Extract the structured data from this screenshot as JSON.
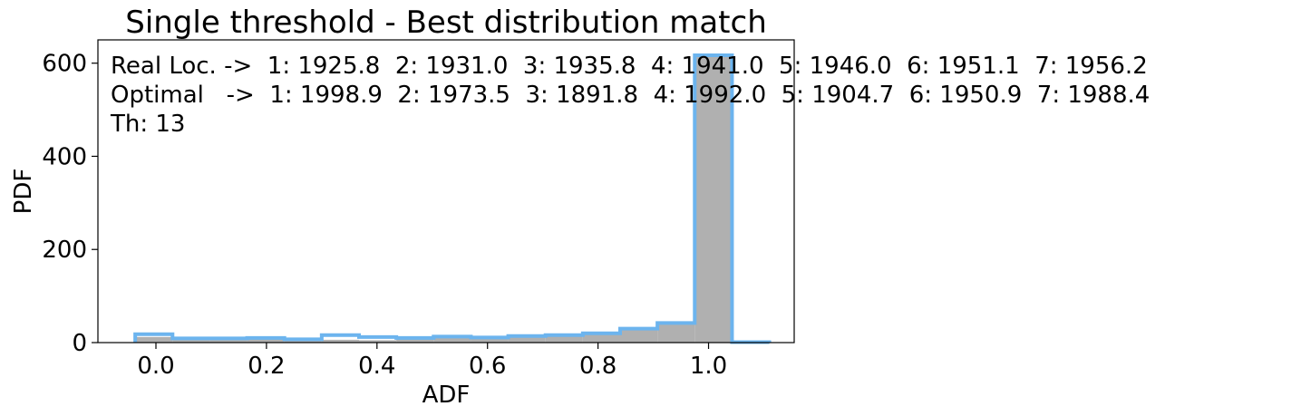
{
  "chart_data": {
    "type": "bar",
    "title": "Single threshold - Best distribution match",
    "xlabel": "ADF",
    "ylabel": "PDF",
    "xlim": [
      -0.105,
      1.155
    ],
    "ylim": [
      0,
      650
    ],
    "xticks": [
      {
        "value": 0.0,
        "label": "0.0"
      },
      {
        "value": 0.2,
        "label": "0.2"
      },
      {
        "value": 0.4,
        "label": "0.4"
      },
      {
        "value": 0.6,
        "label": "0.6"
      },
      {
        "value": 0.8,
        "label": "0.8"
      },
      {
        "value": 1.0,
        "label": "1.0"
      }
    ],
    "yticks": [
      {
        "value": 0,
        "label": "0"
      },
      {
        "value": 200,
        "label": "200"
      },
      {
        "value": 400,
        "label": "400"
      },
      {
        "value": 600,
        "label": "600"
      }
    ],
    "bin_edges": [
      -0.0375,
      0.03,
      0.0975,
      0.165,
      0.2325,
      0.3,
      0.3675,
      0.435,
      0.5025,
      0.57,
      0.6375,
      0.705,
      0.7725,
      0.84,
      0.9075,
      0.975,
      1.0425,
      1.11
    ],
    "series": [
      {
        "role": "real",
        "style": "filled",
        "color": "#b0b0b0",
        "values": [
          12,
          8,
          8,
          9,
          6,
          6,
          5,
          9,
          10,
          10,
          12,
          14,
          18,
          28,
          40,
          615,
          0
        ]
      },
      {
        "role": "optimal",
        "style": "step-outline",
        "color": "#6cb4ee",
        "values": [
          18,
          9,
          9,
          10,
          7,
          16,
          12,
          10,
          13,
          11,
          14,
          16,
          20,
          30,
          42,
          617,
          1
        ]
      }
    ],
    "annotations": [
      "Real Loc. ->  1: 1925.8  2: 1931.0  3: 1935.8  4: 1941.0  5: 1946.0  6: 1951.1  7: 1956.2",
      "Optimal   ->  1: 1998.9  2: 1973.5  3: 1891.8  4: 1992.0  5: 1904.7  6: 1950.9  7: 1988.4",
      "Th: 13"
    ],
    "grid": false,
    "legend": "none"
  }
}
